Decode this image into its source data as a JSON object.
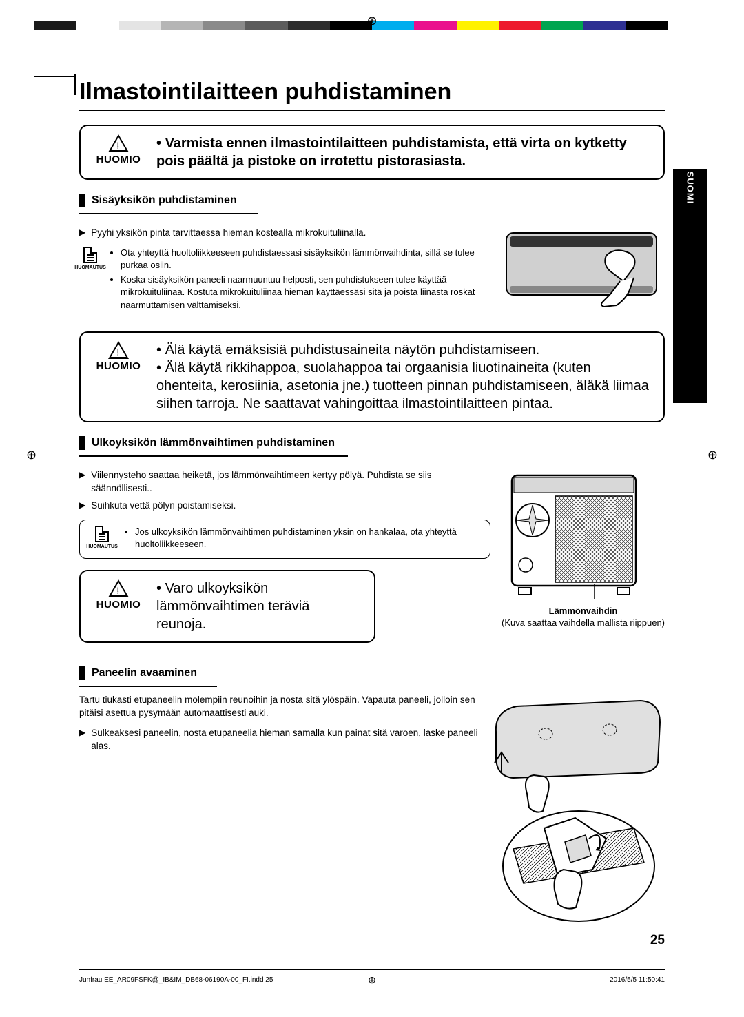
{
  "printBar": [
    "#1a1a1a",
    "#ffffff",
    "#e4e4e4",
    "#b5b5b5",
    "#8a8a8a",
    "#5c5c5c",
    "#2e2e2e",
    "#000000",
    "#00adee",
    "#ea118d",
    "#fff200",
    "#ed1b2e",
    "#00a550",
    "#2e3092",
    "#000000",
    "#ffffff"
  ],
  "cropMark": true,
  "regMark": "⊕",
  "title": "Ilmastointilaitteen puhdistaminen",
  "sideTab": "SUOMI",
  "huomio": {
    "label": "HUOMIO",
    "box1": "Varmista ennen ilmastointilaitteen puhdistamista, että virta on kytketty pois päältä ja pistoke on irrotettu pistorasiasta.",
    "box2_line1": "Älä käytä emäksisiä puhdistusaineita näytön puhdistamiseen.",
    "box2_line2": "Älä käytä rikkihappoa, suolahappoa tai orgaanisia liuotinaineita (kuten ohenteita, kerosiinia, asetonia jne.) tuotteen pinnan puhdistamiseen, äläkä liimaa siihen tarroja. Ne saattavat vahingoittaa ilmastointilaitteen pintaa.",
    "box3": "Varo ulkoyksikön lämmönvaihtimen teräviä reunoja."
  },
  "section1": {
    "title": "Sisäyksikön puhdistaminen",
    "bullet": "Pyyhi yksikön pinta tarvittaessa hieman kostealla mikrokuituliinalla.",
    "noteLabel": "HUOMAUTUS",
    "notes": [
      "Ota yhteyttä huoltoliikkeeseen puhdistaessasi sisäyksikön lämmönvaihdinta, sillä se tulee purkaa osiin.",
      "Koska sisäyksikön paneeli naarmuuntuu helposti, sen puhdistukseen tulee käyttää mikrokuituliinaa. Kostuta mikrokuituliinaa hieman käyttäessäsi sitä ja poista liinasta roskat naarmuttamisen välttämiseksi."
    ]
  },
  "section2": {
    "title": "Ulkoyksikön lämmönvaihtimen puhdistaminen",
    "bullets": [
      "Viilennysteho saattaa heiketä, jos lämmönvaihtimeen kertyy pölyä. Puhdista se siis säännöllisesti..",
      "Suihkuta vettä pölyn poistamiseksi."
    ],
    "noteLabel": "HUOMAUTUS",
    "notes": [
      "Jos ulkoyksikön lämmönvaihtimen puhdistaminen yksin on hankalaa, ota yhteyttä huoltoliikkeeseen."
    ],
    "captionTitle": "Lämmönvaihdin",
    "captionSub": "(Kuva saattaa vaihdella mallista riippuen)"
  },
  "section3": {
    "title": "Paneelin avaaminen",
    "intro": "Tartu tiukasti etupaneelin molempiin reunoihin ja nosta sitä ylöspäin. Vapauta paneeli, jolloin sen pitäisi asettua pysymään automaattisesti auki.",
    "bullet": "Sulkeaksesi paneelin, nosta etupaneelia hieman samalla kun painat sitä varoen, laske paneeli alas."
  },
  "pageNum": "25",
  "footer": {
    "left": "Junfrau EE_AR09FSFK@_IB&IM_DB68-06190A-00_FI.indd   25",
    "right": "2016/5/5   11:50:41"
  }
}
